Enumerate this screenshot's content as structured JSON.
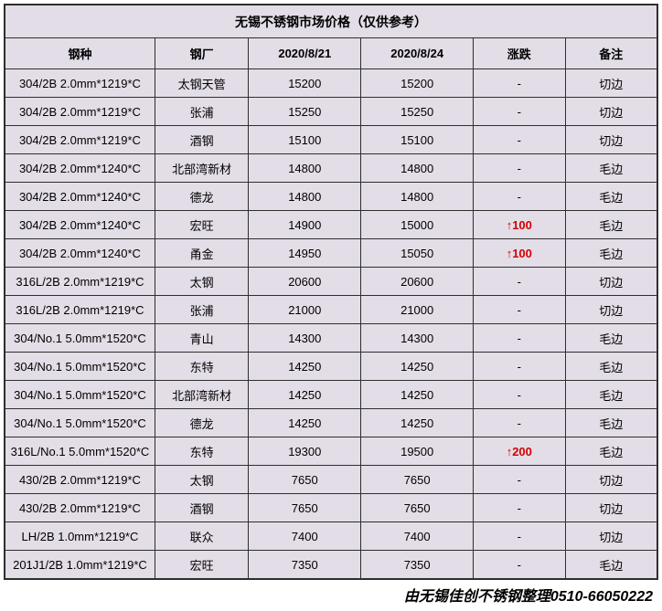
{
  "title": "无锡不锈钢市场价格（仅供参考）",
  "columns": [
    "钢种",
    "钢厂",
    "2020/8/21",
    "2020/8/24",
    "涨跌",
    "备注"
  ],
  "rows": [
    {
      "steel": "304/2B 2.0mm*1219*C",
      "factory": "太钢天管",
      "d1": "15200",
      "d2": "15200",
      "change": "-",
      "up": false,
      "remark": "切边"
    },
    {
      "steel": "304/2B 2.0mm*1219*C",
      "factory": "张浦",
      "d1": "15250",
      "d2": "15250",
      "change": "-",
      "up": false,
      "remark": "切边"
    },
    {
      "steel": "304/2B 2.0mm*1219*C",
      "factory": "酒钢",
      "d1": "15100",
      "d2": "15100",
      "change": "-",
      "up": false,
      "remark": "切边"
    },
    {
      "steel": "304/2B 2.0mm*1240*C",
      "factory": "北部湾新材",
      "d1": "14800",
      "d2": "14800",
      "change": "-",
      "up": false,
      "remark": "毛边"
    },
    {
      "steel": "304/2B 2.0mm*1240*C",
      "factory": "德龙",
      "d1": "14800",
      "d2": "14800",
      "change": "-",
      "up": false,
      "remark": "毛边"
    },
    {
      "steel": "304/2B 2.0mm*1240*C",
      "factory": "宏旺",
      "d1": "14900",
      "d2": "15000",
      "change": "↑100",
      "up": true,
      "remark": "毛边"
    },
    {
      "steel": "304/2B 2.0mm*1240*C",
      "factory": "甬金",
      "d1": "14950",
      "d2": "15050",
      "change": "↑100",
      "up": true,
      "remark": "毛边"
    },
    {
      "steel": "316L/2B 2.0mm*1219*C",
      "factory": "太钢",
      "d1": "20600",
      "d2": "20600",
      "change": "-",
      "up": false,
      "remark": "切边"
    },
    {
      "steel": "316L/2B 2.0mm*1219*C",
      "factory": "张浦",
      "d1": "21000",
      "d2": "21000",
      "change": "-",
      "up": false,
      "remark": "切边"
    },
    {
      "steel": "304/No.1 5.0mm*1520*C",
      "factory": "青山",
      "d1": "14300",
      "d2": "14300",
      "change": "-",
      "up": false,
      "remark": "毛边"
    },
    {
      "steel": "304/No.1 5.0mm*1520*C",
      "factory": "东特",
      "d1": "14250",
      "d2": "14250",
      "change": "-",
      "up": false,
      "remark": "毛边"
    },
    {
      "steel": "304/No.1 5.0mm*1520*C",
      "factory": "北部湾新材",
      "d1": "14250",
      "d2": "14250",
      "change": "-",
      "up": false,
      "remark": "毛边"
    },
    {
      "steel": "304/No.1 5.0mm*1520*C",
      "factory": "德龙",
      "d1": "14250",
      "d2": "14250",
      "change": "-",
      "up": false,
      "remark": "毛边"
    },
    {
      "steel": "316L/No.1 5.0mm*1520*C",
      "factory": "东特",
      "d1": "19300",
      "d2": "19500",
      "change": "↑200",
      "up": true,
      "remark": "毛边"
    },
    {
      "steel": "430/2B 2.0mm*1219*C",
      "factory": "太钢",
      "d1": "7650",
      "d2": "7650",
      "change": "-",
      "up": false,
      "remark": "切边"
    },
    {
      "steel": "430/2B 2.0mm*1219*C",
      "factory": "酒钢",
      "d1": "7650",
      "d2": "7650",
      "change": "-",
      "up": false,
      "remark": "切边"
    },
    {
      "steel": "LH/2B 1.0mm*1219*C",
      "factory": "联众",
      "d1": "7400",
      "d2": "7400",
      "change": "-",
      "up": false,
      "remark": "切边"
    },
    {
      "steel": "201J1/2B 1.0mm*1219*C",
      "factory": "宏旺",
      "d1": "7350",
      "d2": "7350",
      "change": "-",
      "up": false,
      "remark": "毛边"
    }
  ],
  "footer": "由无锡佳创不锈钢整理0510-66050222",
  "colors": {
    "cell_bg": "#e3dde7",
    "border": "#2e2e2e",
    "up": "#d40000"
  }
}
